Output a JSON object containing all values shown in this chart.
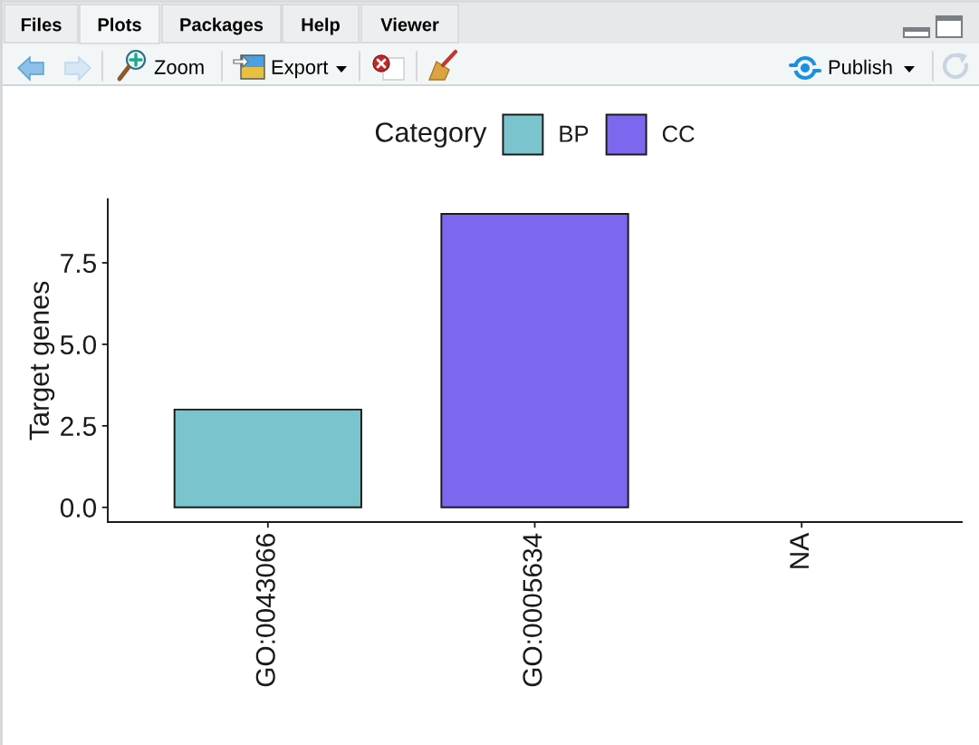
{
  "chart_data": {
    "type": "bar",
    "categories": [
      "GO:0043066",
      "GO:0005634",
      "NA"
    ],
    "series": [
      {
        "name": "BP",
        "color": "#7ac5cd",
        "values": [
          3,
          null,
          null
        ]
      },
      {
        "name": "CC",
        "color": "#7b68ee",
        "values": [
          null,
          9,
          null
        ]
      }
    ],
    "stacked": true,
    "ylabel": "Target genes",
    "legend_title": "Category",
    "legend": "top",
    "ylim": [
      -0.45,
      9.45
    ],
    "yticks": [
      {
        "value": 0,
        "label": "0.0"
      },
      {
        "value": 2.5,
        "label": "2.5"
      },
      {
        "value": 5,
        "label": "5.0"
      },
      {
        "value": 7.5,
        "label": "7.5"
      }
    ],
    "annotations": [
      "Files",
      "Plots",
      "Packages",
      "Help",
      "Viewer",
      "Zoom",
      "Export",
      "Publish"
    ]
  }
}
